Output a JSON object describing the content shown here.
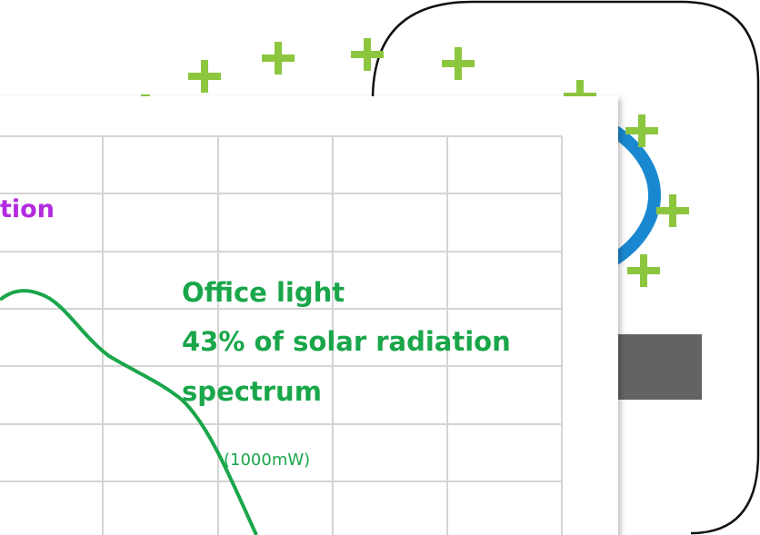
{
  "panel": {
    "heading_fragment": "tion",
    "annotation": {
      "lines": [
        "Office light",
        "43% of solar radiation",
        "spectrum"
      ],
      "power": "(1000mW)"
    }
  }
}
